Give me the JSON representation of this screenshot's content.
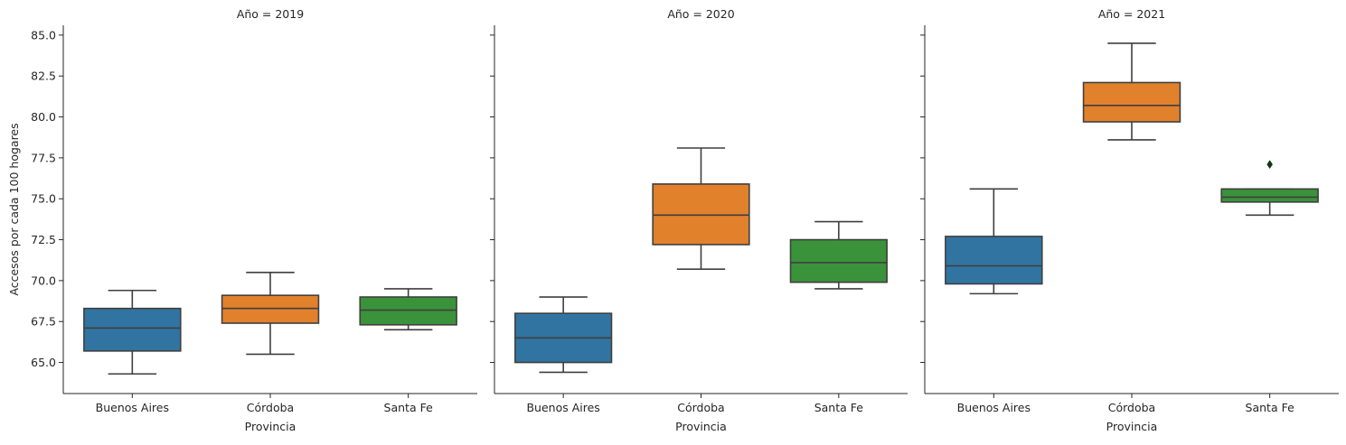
{
  "chart_data": {
    "type": "box",
    "facet_variable": "Año",
    "facet_titles": [
      "Año = 2019",
      "Año = 2020",
      "Año = 2021"
    ],
    "categories": [
      "Buenos Aires",
      "Córdoba",
      "Santa Fe"
    ],
    "xlabel": "Provincia",
    "ylabel": "Accesos por cada 100 hogares",
    "ylim": [
      63.1,
      85.6
    ],
    "yticks": [
      "65.0",
      "67.5",
      "70.0",
      "72.5",
      "75.0",
      "77.5",
      "80.0",
      "82.5",
      "85.0"
    ],
    "category_colors": [
      "#3274a1",
      "#e1812c",
      "#3a923a"
    ],
    "facets": [
      {
        "year": "2019",
        "boxes": [
          {
            "category": "Buenos Aires",
            "whisker_low": 64.3,
            "q1": 65.7,
            "median": 67.1,
            "q3": 68.3,
            "whisker_high": 69.4,
            "outliers": []
          },
          {
            "category": "Córdoba",
            "whisker_low": 65.5,
            "q1": 67.4,
            "median": 68.3,
            "q3": 69.1,
            "whisker_high": 70.5,
            "outliers": []
          },
          {
            "category": "Santa Fe",
            "whisker_low": 67.0,
            "q1": 67.3,
            "median": 68.2,
            "q3": 69.0,
            "whisker_high": 69.5,
            "outliers": []
          }
        ]
      },
      {
        "year": "2020",
        "boxes": [
          {
            "category": "Buenos Aires",
            "whisker_low": 64.4,
            "q1": 65.0,
            "median": 66.5,
            "q3": 68.0,
            "whisker_high": 69.0,
            "outliers": []
          },
          {
            "category": "Córdoba",
            "whisker_low": 70.7,
            "q1": 72.2,
            "median": 74.0,
            "q3": 75.9,
            "whisker_high": 78.1,
            "outliers": []
          },
          {
            "category": "Santa Fe",
            "whisker_low": 69.5,
            "q1": 69.9,
            "median": 71.1,
            "q3": 72.5,
            "whisker_high": 73.6,
            "outliers": []
          }
        ]
      },
      {
        "year": "2021",
        "boxes": [
          {
            "category": "Buenos Aires",
            "whisker_low": 69.2,
            "q1": 69.8,
            "median": 70.9,
            "q3": 72.7,
            "whisker_high": 75.6,
            "outliers": []
          },
          {
            "category": "Córdoba",
            "whisker_low": 78.6,
            "q1": 79.7,
            "median": 80.7,
            "q3": 82.1,
            "whisker_high": 84.5,
            "outliers": []
          },
          {
            "category": "Santa Fe",
            "whisker_low": 74.0,
            "q1": 74.8,
            "median": 75.1,
            "q3": 75.6,
            "whisker_high": 75.6,
            "outliers": [
              77.1
            ]
          }
        ]
      }
    ],
    "grid": false,
    "shared_y": true
  }
}
